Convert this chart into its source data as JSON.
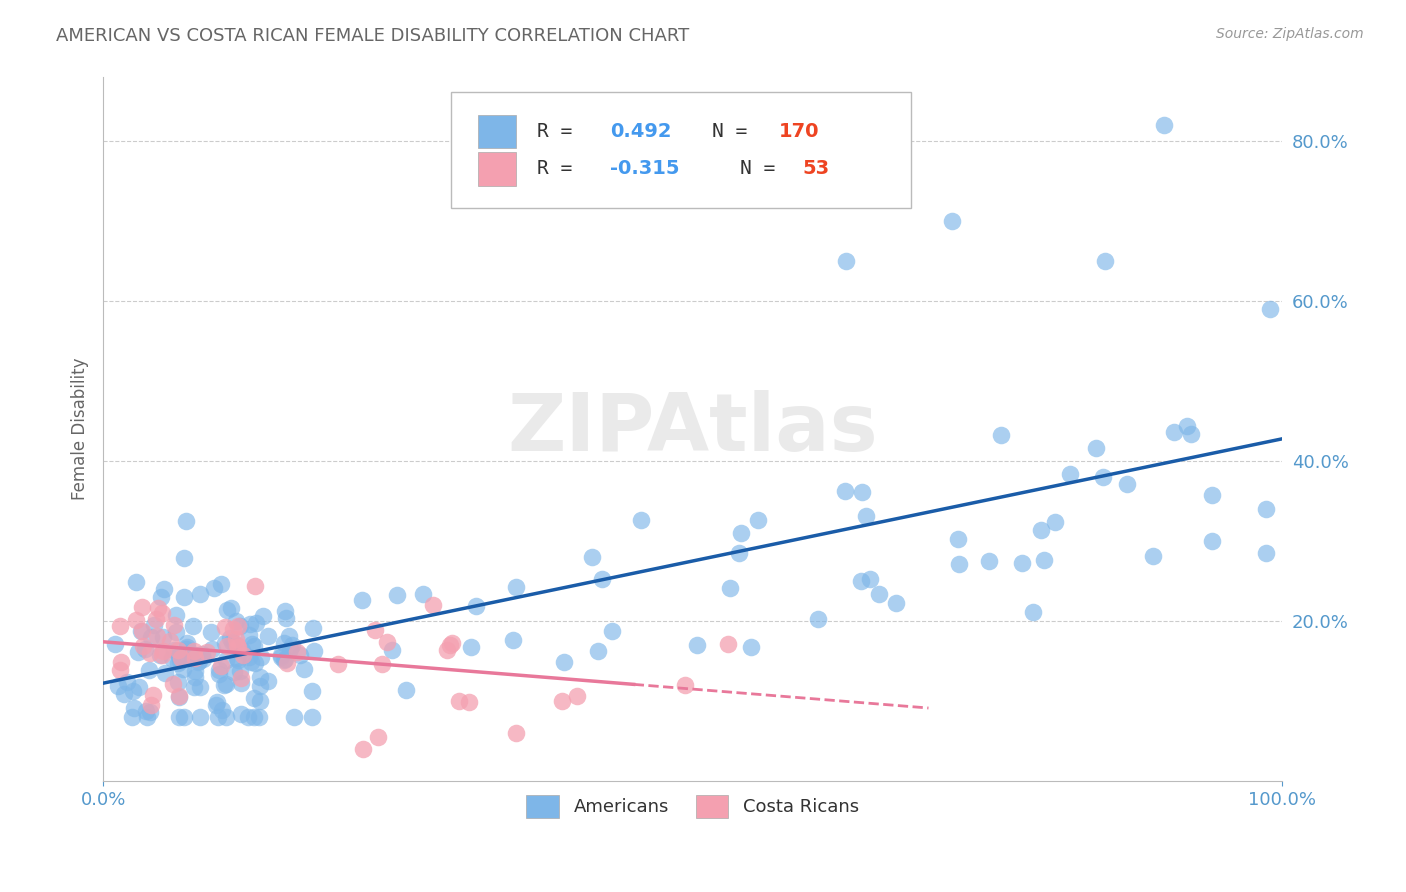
{
  "title": "AMERICAN VS COSTA RICAN FEMALE DISABILITY CORRELATION CHART",
  "source": "Source: ZipAtlas.com",
  "ylabel": "Female Disability",
  "xlim": [
    0.0,
    1.0
  ],
  "ylim": [
    0.0,
    0.88
  ],
  "ytick_values": [
    0.2,
    0.4,
    0.6,
    0.8
  ],
  "xtick_values": [
    0.0,
    1.0
  ],
  "americans_color": "#7EB6E8",
  "costa_ricans_color": "#F4A0B0",
  "regression_americans_color": "#1A5CA8",
  "regression_costaricans_color": "#E8789A",
  "R_americans": 0.492,
  "N_americans": 170,
  "R_costaricans": -0.315,
  "N_costaricans": 53,
  "background_color": "#FFFFFF",
  "grid_color": "#CCCCCC",
  "title_color": "#666666",
  "legend_americans": "Americans",
  "legend_costaricans": "Costa Ricans",
  "tick_color": "#5599CC",
  "source_color": "#999999"
}
